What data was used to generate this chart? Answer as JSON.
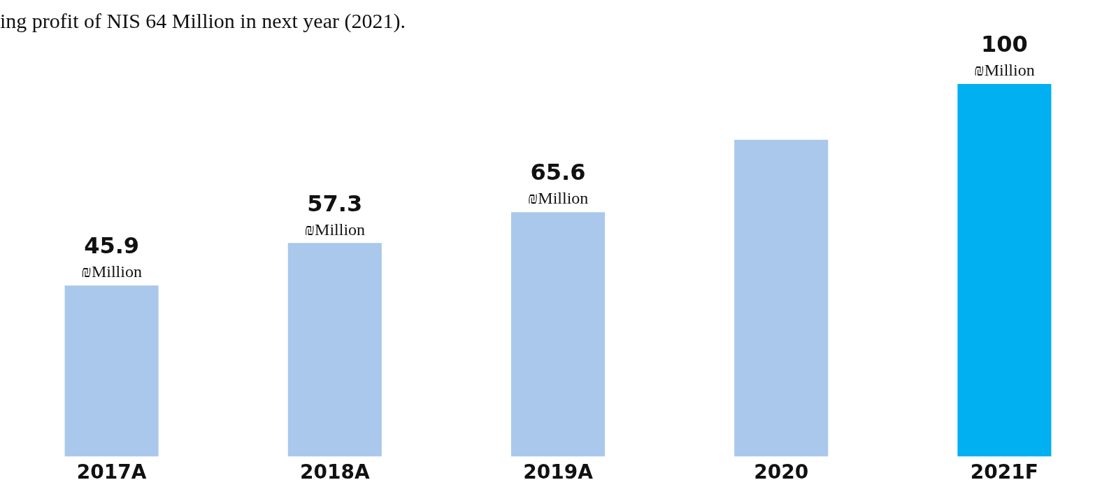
{
  "chart_data": {
    "type": "bar",
    "title": "ing profit of NIS 64 Million in next year (2021).",
    "categories": [
      "2017A",
      "2018A",
      "2019A",
      "2020",
      "2021F"
    ],
    "values": [
      45.9,
      57.3,
      65.6,
      85,
      100
    ],
    "colors": [
      "#a9c8ec",
      "#a9c8ec",
      "#a9c8ec",
      "#a9c8ec",
      "#00b0f0"
    ],
    "value_labels": [
      "45.9 ₪Million",
      "57.3 ₪Million",
      "65.6 ₪Million",
      null,
      "100 ₪Million"
    ],
    "grid": false,
    "legend": false
  }
}
